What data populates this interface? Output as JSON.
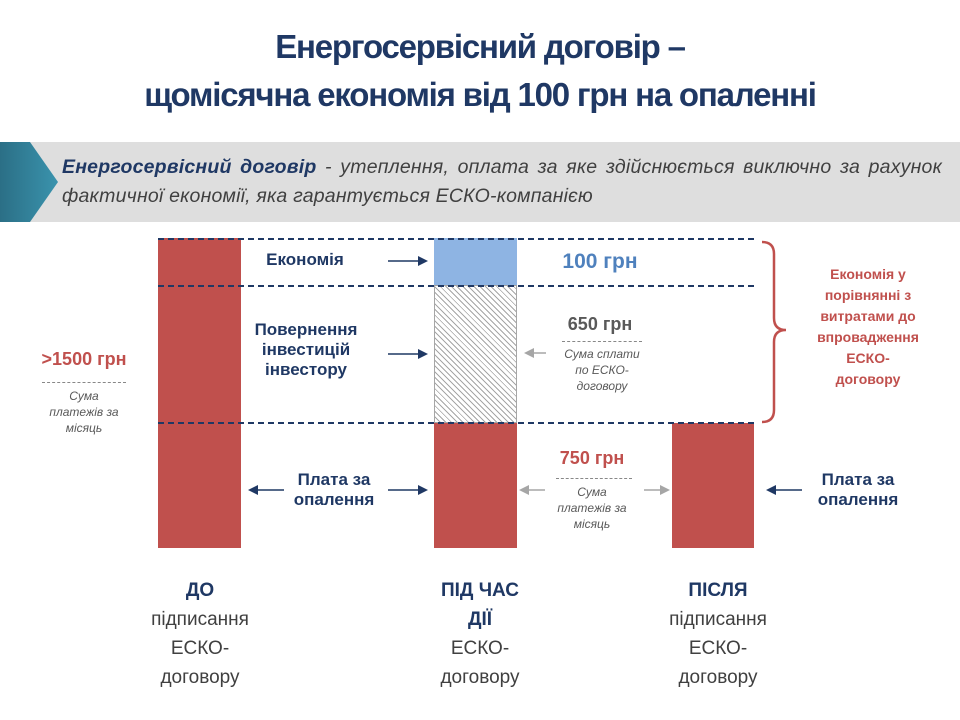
{
  "title": {
    "line1": "Енергосервісний договір –",
    "line2": "щомісячна економія від 100 грн на опаленні"
  },
  "definition": {
    "term": "Енергосервісний договір",
    "text": " - утеплення, оплата за яке здійснюється виключно за рахунок фактичної економії, яка гарантується ЕСКО-компанією"
  },
  "labels": {
    "economy": "Економія",
    "investment": [
      "Повернення",
      "інвестицій",
      "інвестору"
    ],
    "heating_left": [
      "Плата за",
      "опалення"
    ],
    "heating_right": [
      "Плата за",
      "опалення"
    ]
  },
  "values": {
    "before_total": ">1500 грн",
    "before_note": [
      "Сума",
      "платежів за",
      "місяць"
    ],
    "economy": "100 грн",
    "esco_payment": "650 грн",
    "esco_note": [
      "Сума сплати",
      "по ЕСКО-",
      "договору"
    ],
    "heating_payment": "750 грн",
    "heating_note": [
      "Сума",
      "платежів за",
      "місяць"
    ]
  },
  "savings_note": [
    "Економія у",
    "порівнянні з",
    "витратами до",
    "впровадження",
    "ЕСКО-",
    "договору"
  ],
  "columns": [
    {
      "heading": "ДО",
      "lines": [
        "підписання",
        "ЕСКО-",
        "договору"
      ]
    },
    {
      "heading_lines": [
        "ПІД ЧАС",
        "ДІЇ"
      ],
      "lines": [
        "ЕСКО-",
        "договору"
      ]
    },
    {
      "heading": "ПІСЛЯ",
      "lines": [
        "підписання",
        "ЕСКО-",
        "договору"
      ]
    }
  ],
  "colors": {
    "title": "#1f3864",
    "bar": "#c0504d",
    "economy_bar": "#8eb4e3",
    "accent_chevron": "#31849b",
    "banner": "#dedede"
  }
}
